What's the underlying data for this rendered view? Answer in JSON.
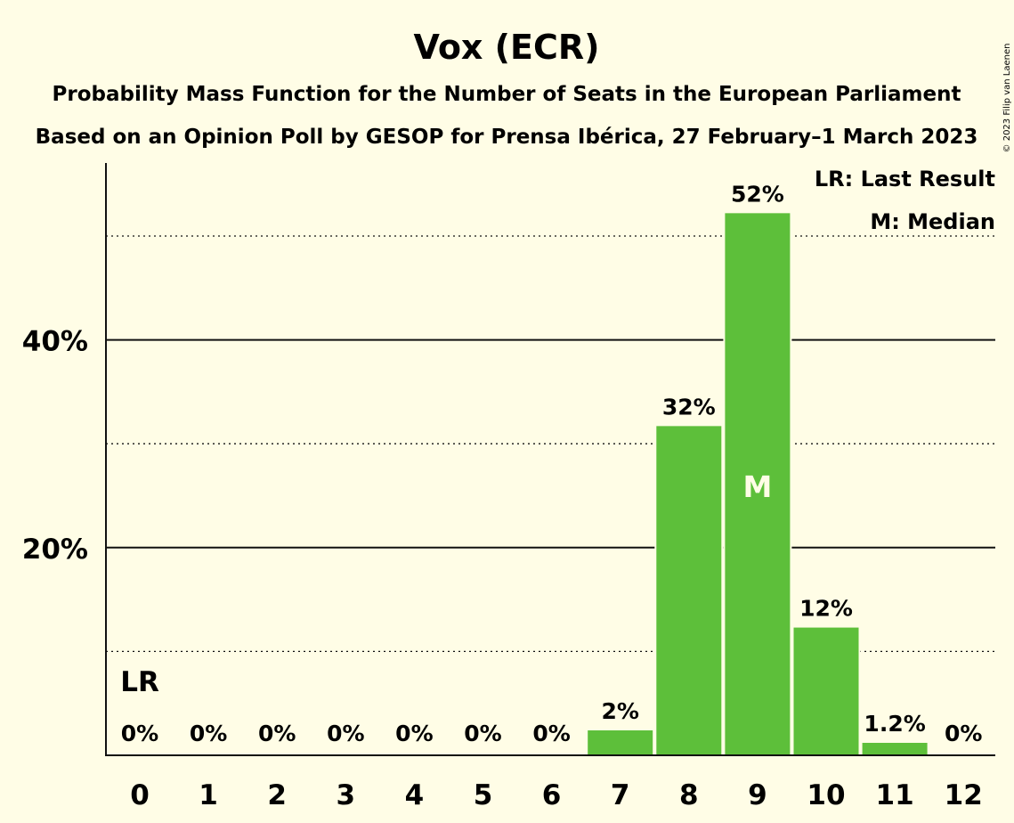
{
  "chart_data": {
    "type": "bar",
    "title": "Vox (ECR)",
    "subtitle_line1": "Probability Mass Function for the Number of Seats in the European Parliament",
    "subtitle_line2": "Based on an Opinion Poll by GESOP for Prensa Ibérica, 27 February–1 March 2023",
    "categories": [
      "0",
      "1",
      "2",
      "3",
      "4",
      "5",
      "6",
      "7",
      "8",
      "9",
      "10",
      "11",
      "12"
    ],
    "values": [
      0,
      0,
      0,
      0,
      0,
      0,
      0,
      2.4,
      31.7,
      52.2,
      12.3,
      1.2,
      0
    ],
    "value_labels": [
      "0%",
      "0%",
      "0%",
      "0%",
      "0%",
      "0%",
      "0%",
      "2%",
      "32%",
      "52%",
      "12%",
      "1.2%",
      "0%"
    ],
    "ylim": [
      0,
      57
    ],
    "y_ticks": [
      {
        "value": 20,
        "label": "20%",
        "style": "solid"
      },
      {
        "value": 40,
        "label": "40%",
        "style": "solid"
      }
    ],
    "y_dotted_lines": [
      10,
      30,
      50
    ],
    "last_result_index": 0,
    "median_index": 9,
    "last_result_label": "LR",
    "median_label": "M",
    "legend": [
      "LR: Last Result",
      "M: Median"
    ],
    "legend_position": "top-right",
    "grid": true,
    "colors": {
      "bar": "#5dbf3a",
      "background": "#fffde6",
      "text": "#111111"
    }
  },
  "copyright": "© 2023 Filip van Laenen"
}
